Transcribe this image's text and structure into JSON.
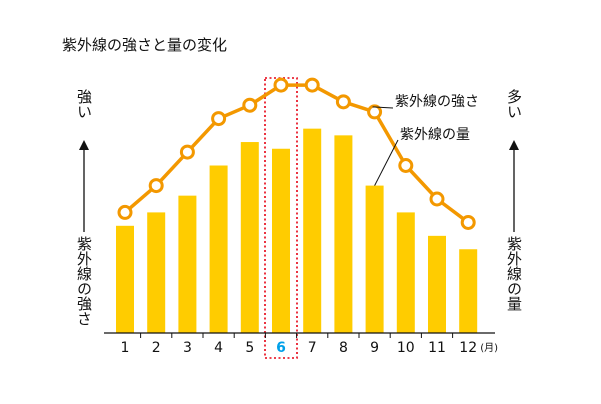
{
  "chart_data": {
    "type": "bar",
    "title": "紫外線の強さと量の変化",
    "categories": [
      "1",
      "2",
      "3",
      "4",
      "5",
      "6",
      "7",
      "8",
      "9",
      "10",
      "11",
      "12"
    ],
    "x_unit": "(月)",
    "highlight_category": "6",
    "series": [
      {
        "name": "紫外線の量",
        "type": "bar",
        "values": [
          3.2,
          3.6,
          4.1,
          5.0,
          5.7,
          5.5,
          6.1,
          5.9,
          4.4,
          3.6,
          2.9,
          2.5
        ],
        "color": "#FFCC00"
      },
      {
        "name": "紫外線の強さ",
        "type": "line",
        "values": [
          3.6,
          4.4,
          5.4,
          6.4,
          6.8,
          7.4,
          7.4,
          6.9,
          6.6,
          5.0,
          4.0,
          3.3
        ],
        "color": "#F39800"
      }
    ],
    "ylim": [
      0,
      8
    ],
    "grid": false,
    "left_axis": {
      "top_label": "強い",
      "bottom_label": "紫外線の強さ"
    },
    "right_axis": {
      "top_label": "多い",
      "bottom_label": "紫外線の量"
    },
    "highlight_color": "#E60012",
    "highlight_text_color": "#00A0E9"
  }
}
